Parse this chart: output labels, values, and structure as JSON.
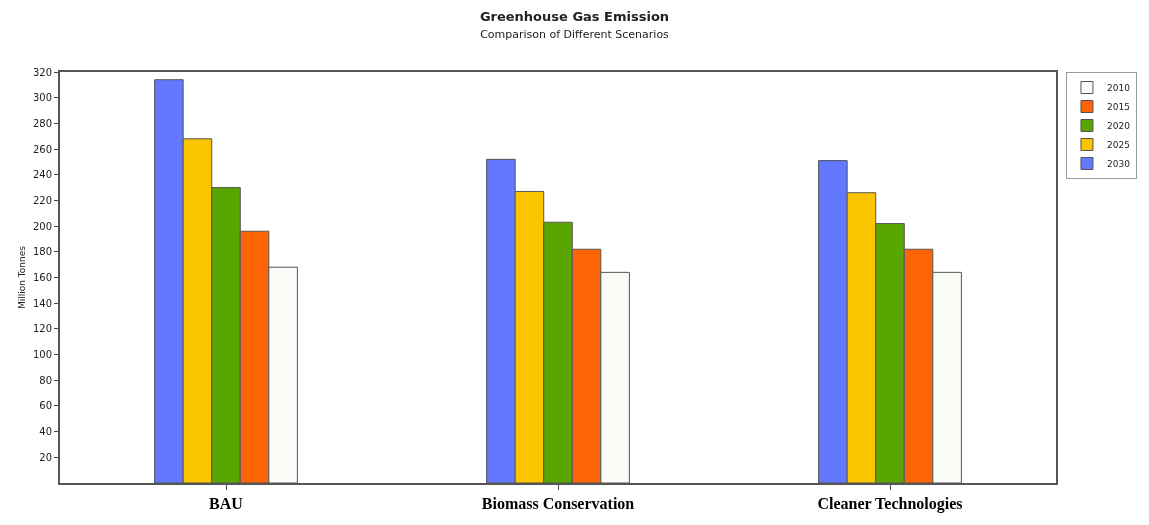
{
  "chart_data": {
    "type": "bar",
    "title": "Greenhouse Gas Emission",
    "subtitle": "Comparison of Different Scenarios",
    "ylabel": "Million Tonnes",
    "categories": [
      "BAU",
      "Biomass Conservation",
      "Cleaner Technologies"
    ],
    "series": [
      {
        "name": "2030",
        "color": "#6278ff",
        "values": [
          314,
          252,
          251
        ]
      },
      {
        "name": "2025",
        "color": "#fbc400",
        "values": [
          268,
          227,
          226
        ]
      },
      {
        "name": "2020",
        "color": "#5aa600",
        "values": [
          230,
          203,
          202
        ]
      },
      {
        "name": "2015",
        "color": "#fd6405",
        "values": [
          196,
          182,
          182
        ]
      },
      {
        "name": "2010",
        "color": "#fbfbf8",
        "values": [
          168,
          164,
          164
        ]
      }
    ],
    "ylim": [
      0,
      320
    ],
    "yticks": [
      20,
      40,
      60,
      80,
      100,
      120,
      140,
      160,
      180,
      200,
      220,
      240,
      260,
      280,
      300,
      320
    ],
    "grid": false,
    "legend": "top right"
  }
}
